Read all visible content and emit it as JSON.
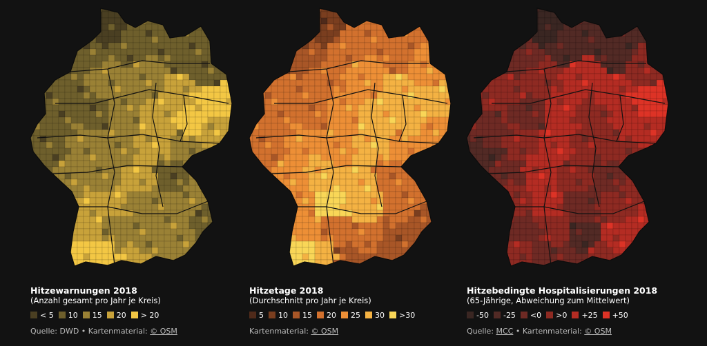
{
  "panels": [
    {
      "id": "heat-warnings",
      "title": "Hitzewarnungen 2018",
      "subtitle": "(Anzahl gesamt pro Jahr je Kreis)",
      "legend": [
        {
          "label": "< 5",
          "color": "#4a3f22"
        },
        {
          "label": "10",
          "color": "#6e5f2c"
        },
        {
          "label": "15",
          "color": "#9a8135"
        },
        {
          "label": "20",
          "color": "#c8a23a"
        },
        {
          "label": "> 20",
          "color": "#f3c744"
        }
      ],
      "source_prefix": "Quelle: DWD",
      "source_mid": "Kartenmaterial:",
      "source_link": "© OSM"
    },
    {
      "id": "heat-days",
      "title": "Hitzetage 2018",
      "subtitle": "(Durchschnitt pro Jahr je Kreis)",
      "legend": [
        {
          "label": "5",
          "color": "#4f2a1a"
        },
        {
          "label": "10",
          "color": "#7a3e1f"
        },
        {
          "label": "15",
          "color": "#a85627"
        },
        {
          "label": "20",
          "color": "#d2712e"
        },
        {
          "label": "25",
          "color": "#ed8f36"
        },
        {
          "label": "30",
          "color": "#f4b243"
        },
        {
          "label": ">30",
          "color": "#f9d657"
        }
      ],
      "source_prefix": "",
      "source_mid": "Kartenmaterial:",
      "source_link": "© OSM"
    },
    {
      "id": "hospitalizations",
      "title": "Hitzebedingte Hospitalisierungen 2018",
      "subtitle": "(65-Jährige, Abweichung zum Mittelwert)",
      "legend": [
        {
          "label": "-50",
          "color": "#3a2622"
        },
        {
          "label": "-25",
          "color": "#522a25"
        },
        {
          "label": "<0",
          "color": "#6e2a24"
        },
        {
          "label": ">0",
          "color": "#8e2a22"
        },
        {
          "label": "+25",
          "color": "#b42c23"
        },
        {
          "label": "+50",
          "color": "#dd3326"
        }
      ],
      "source_prefix": "Quelle: MCC",
      "source_mid": "Kartenmaterial:",
      "source_link": "© OSM"
    }
  ]
}
